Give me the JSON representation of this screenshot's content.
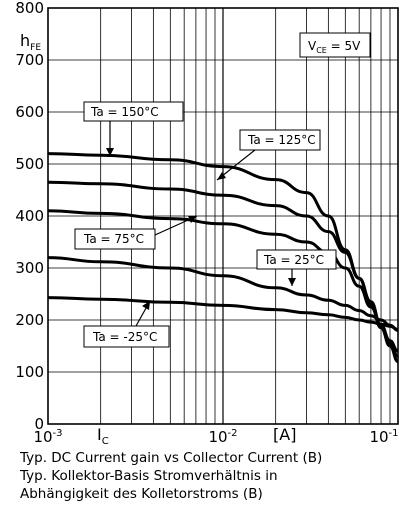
{
  "chart_data": {
    "type": "line",
    "x_scale": "log",
    "xlim": [
      0.001,
      0.1
    ],
    "ylim": [
      0,
      800
    ],
    "y_ticks": [
      "0",
      "100",
      "200",
      "300",
      "400",
      "500",
      "600",
      "700",
      "800"
    ],
    "x_tick_labels": [
      {
        "x": 0.001,
        "base": "10",
        "exp": "-3"
      },
      {
        "x": 0.01,
        "base": "10",
        "exp": "-2"
      },
      {
        "x": 0.1,
        "base": "10",
        "exp": "-1"
      }
    ],
    "ylabel": {
      "main": "h",
      "sub": "FE"
    },
    "xlabel": {
      "main": "I",
      "sub": "C"
    },
    "x_unit": "[A]",
    "grid": true,
    "condition": {
      "prefix": "V",
      "sub": "CE",
      "suffix": " = 5V"
    },
    "series": [
      {
        "name": "Ta = 150°C",
        "x": [
          0.001,
          0.002,
          0.005,
          0.01,
          0.02,
          0.03,
          0.04,
          0.05,
          0.06,
          0.07,
          0.08,
          0.09,
          0.1
        ],
        "y": [
          520,
          517,
          508,
          495,
          470,
          445,
          400,
          335,
          280,
          230,
          185,
          150,
          120
        ]
      },
      {
        "name": "Ta = 125°C",
        "x": [
          0.001,
          0.002,
          0.005,
          0.01,
          0.02,
          0.03,
          0.04,
          0.05,
          0.06,
          0.07,
          0.08,
          0.09,
          0.1
        ],
        "y": [
          465,
          462,
          452,
          440,
          420,
          400,
          370,
          330,
          280,
          235,
          190,
          155,
          130
        ]
      },
      {
        "name": "Ta = 75°C",
        "x": [
          0.001,
          0.002,
          0.005,
          0.01,
          0.02,
          0.03,
          0.04,
          0.05,
          0.06,
          0.07,
          0.08,
          0.09,
          0.1
        ],
        "y": [
          410,
          405,
          395,
          385,
          365,
          350,
          330,
          300,
          265,
          225,
          190,
          160,
          140
        ]
      },
      {
        "name": "Ta = 25°C",
        "x": [
          0.001,
          0.002,
          0.005,
          0.01,
          0.02,
          0.03,
          0.04,
          0.05,
          0.06,
          0.07,
          0.08,
          0.09,
          0.1
        ],
        "y": [
          320,
          312,
          300,
          285,
          262,
          248,
          238,
          228,
          218,
          208,
          200,
          190,
          180
        ]
      },
      {
        "name": "Ta = -25°C",
        "x": [
          0.001,
          0.002,
          0.005,
          0.01,
          0.02,
          0.03,
          0.04,
          0.05,
          0.06,
          0.07,
          0.08,
          0.09,
          0.1
        ],
        "y": [
          243,
          240,
          234,
          228,
          220,
          214,
          210,
          205,
          200,
          196,
          192,
          188,
          182
        ]
      }
    ]
  },
  "caption": [
    "Typ. DC Current gain vs Collector Current (B)",
    "Typ. Kollektor-Basis Stromverhältnis in",
    "Abhängigkeit des Kolletorstroms (B)"
  ]
}
